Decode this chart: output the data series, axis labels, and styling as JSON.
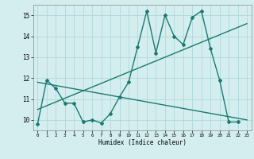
{
  "xlabel": "Humidex (Indice chaleur)",
  "x": [
    0,
    1,
    2,
    3,
    4,
    5,
    6,
    7,
    8,
    9,
    10,
    11,
    12,
    13,
    14,
    15,
    16,
    17,
    18,
    19,
    20,
    21,
    22,
    23
  ],
  "line1": [
    9.8,
    11.9,
    11.5,
    10.8,
    10.8,
    9.9,
    10.0,
    9.85,
    10.3,
    11.1,
    11.8,
    13.5,
    15.2,
    13.2,
    15.0,
    14.0,
    13.6,
    14.9,
    15.2,
    13.4,
    11.9,
    9.9,
    9.9,
    null
  ],
  "line2_x": [
    0,
    23
  ],
  "line2_y": [
    10.5,
    14.6
  ],
  "line3_x": [
    0,
    23
  ],
  "line3_y": [
    11.8,
    10.0
  ],
  "xlim": [
    -0.5,
    23.5
  ],
  "ylim": [
    9.5,
    15.5
  ],
  "yticks": [
    10,
    11,
    12,
    13,
    14,
    15
  ],
  "xticks": [
    0,
    1,
    2,
    3,
    4,
    5,
    6,
    7,
    8,
    9,
    10,
    11,
    12,
    13,
    14,
    15,
    16,
    17,
    18,
    19,
    20,
    21,
    22,
    23
  ],
  "bg_color": "#d4eef0",
  "grid_color": "#b0d8dc",
  "line_color": "#1a7a70",
  "marker": "D",
  "marker_size": 2,
  "line_width": 1.0
}
